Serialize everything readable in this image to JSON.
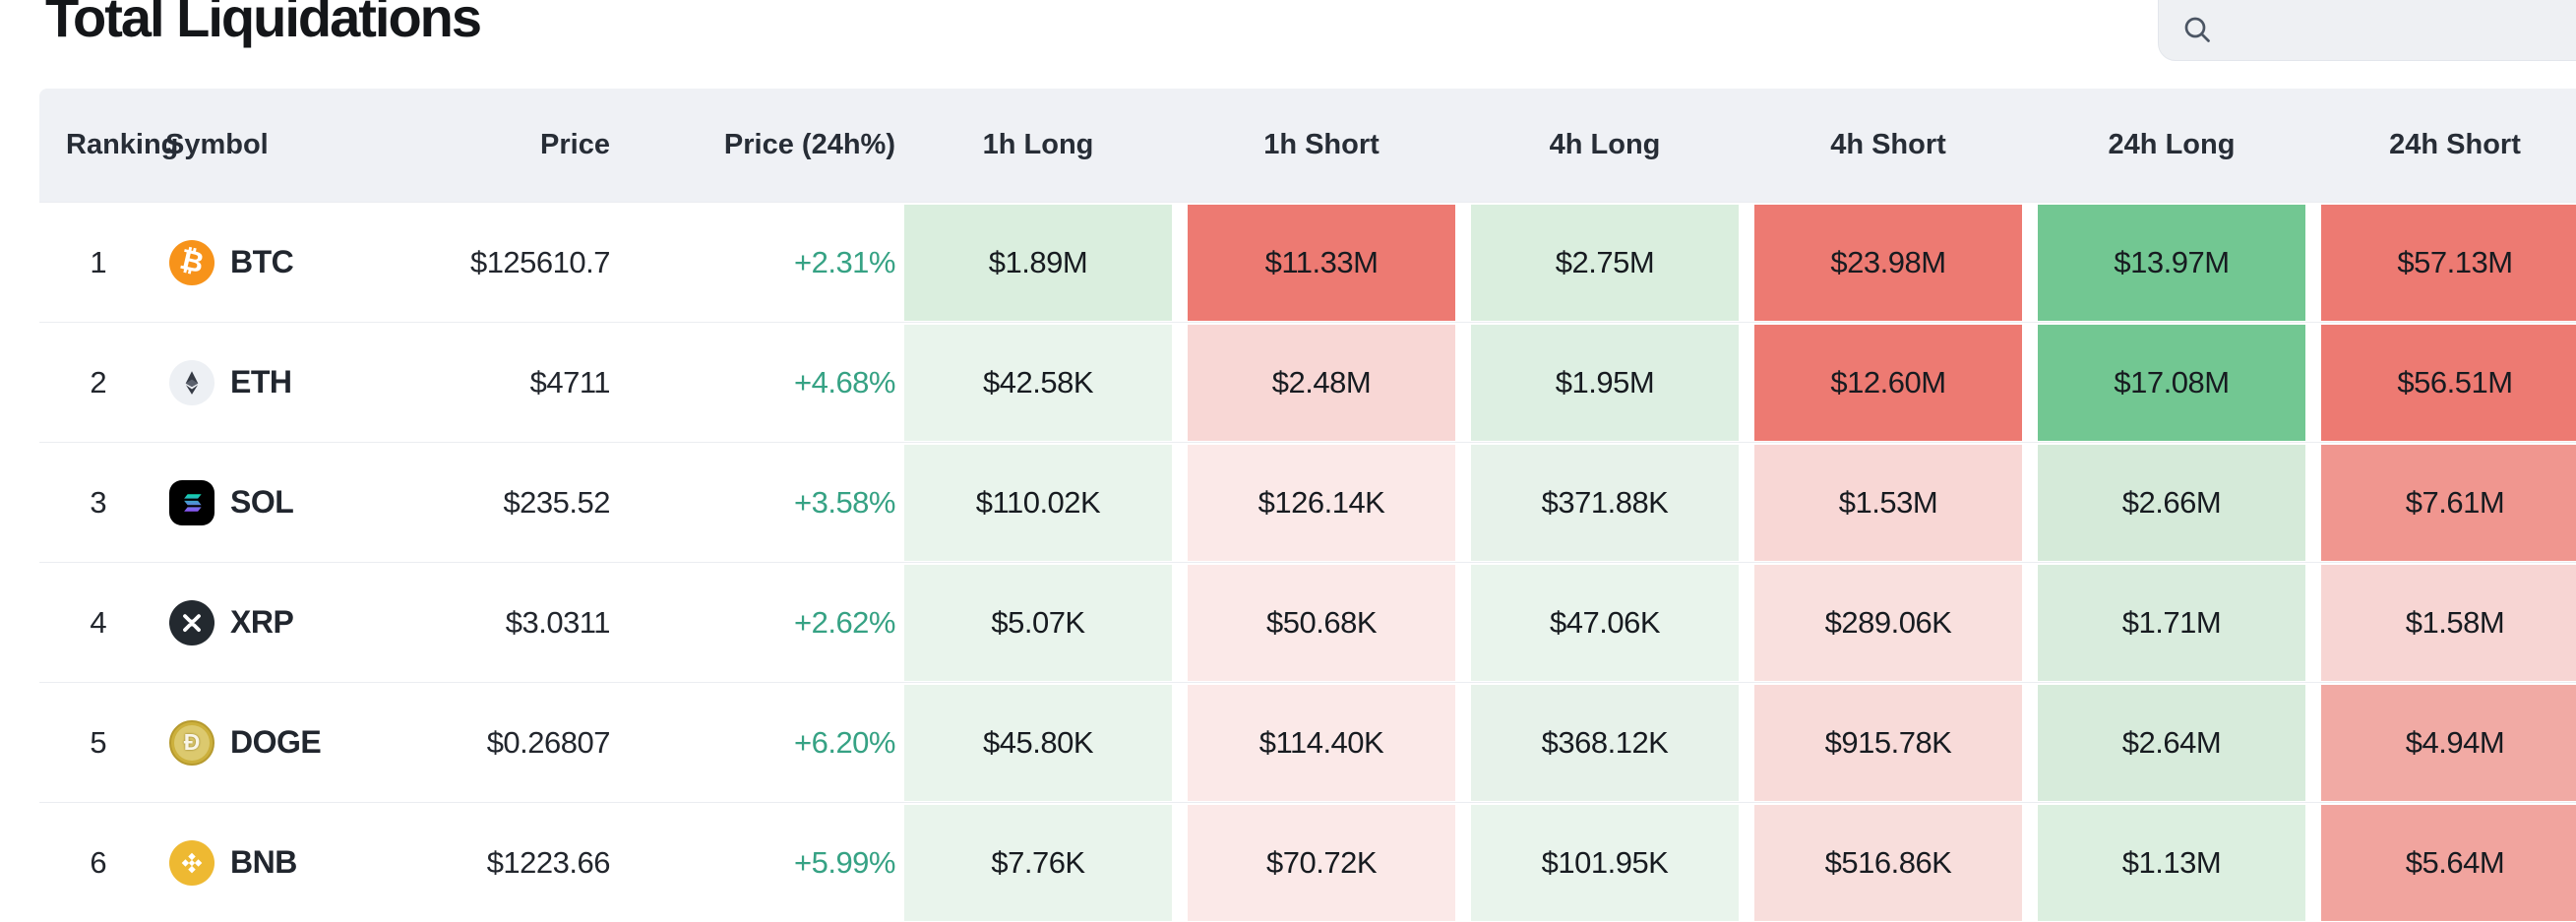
{
  "page": {
    "title": "Total Liquidations"
  },
  "search": {
    "value": "",
    "placeholder": "",
    "icon": "magnifier"
  },
  "colors": {
    "header_bg": "#eff1f5",
    "change_text": "#36a284",
    "strong_green": "#72c792",
    "strong_red": "#ed7a72",
    "row_divider": "#ebedf1"
  },
  "table": {
    "headers": [
      "Ranking",
      "Symbol",
      "Price",
      "Price (24h%)",
      "1h Long",
      "1h Short",
      "4h Long",
      "4h Short",
      "24h Long",
      "24h Short"
    ],
    "rows": [
      {
        "rank": "1",
        "symbol": "BTC",
        "icon": "btc",
        "price": "$125610.7",
        "change": "+2.31%",
        "cells": [
          {
            "v": "$1.89M",
            "bg": "#daeede"
          },
          {
            "v": "$11.33M",
            "bg": "#ed7a72"
          },
          {
            "v": "$2.75M",
            "bg": "#daeede"
          },
          {
            "v": "$23.98M",
            "bg": "#ed7a72"
          },
          {
            "v": "$13.97M",
            "bg": "#72c792"
          },
          {
            "v": "$57.13M",
            "bg": "#ed7a72"
          }
        ]
      },
      {
        "rank": "2",
        "symbol": "ETH",
        "icon": "eth",
        "price": "$4711",
        "change": "+4.68%",
        "cells": [
          {
            "v": "$42.58K",
            "bg": "#e9f4ec"
          },
          {
            "v": "$2.48M",
            "bg": "#f8d7d5"
          },
          {
            "v": "$1.95M",
            "bg": "#ddefe2"
          },
          {
            "v": "$12.60M",
            "bg": "#ed7a72"
          },
          {
            "v": "$17.08M",
            "bg": "#72c792"
          },
          {
            "v": "$56.51M",
            "bg": "#ed7a72"
          }
        ]
      },
      {
        "rank": "3",
        "symbol": "SOL",
        "icon": "sol",
        "price": "$235.52",
        "change": "+3.58%",
        "cells": [
          {
            "v": "$110.02K",
            "bg": "#e9f4ec"
          },
          {
            "v": "$126.14K",
            "bg": "#fbe9e8"
          },
          {
            "v": "$371.88K",
            "bg": "#e7f2ea"
          },
          {
            "v": "$1.53M",
            "bg": "#f8d7d5"
          },
          {
            "v": "$2.66M",
            "bg": "#d5ead9"
          },
          {
            "v": "$7.61M",
            "bg": "#f0968f"
          }
        ]
      },
      {
        "rank": "4",
        "symbol": "XRP",
        "icon": "xrp",
        "price": "$3.0311",
        "change": "+2.62%",
        "cells": [
          {
            "v": "$5.07K",
            "bg": "#e9f4ec"
          },
          {
            "v": "$50.68K",
            "bg": "#fbe9e8"
          },
          {
            "v": "$47.06K",
            "bg": "#e9f4ec"
          },
          {
            "v": "$289.06K",
            "bg": "#f9e0de"
          },
          {
            "v": "$1.71M",
            "bg": "#d9ecdd"
          },
          {
            "v": "$1.58M",
            "bg": "#f7d5d3"
          }
        ]
      },
      {
        "rank": "5",
        "symbol": "DOGE",
        "icon": "doge",
        "price": "$0.26807",
        "change": "+6.20%",
        "cells": [
          {
            "v": "$45.80K",
            "bg": "#e9f4ec"
          },
          {
            "v": "$114.40K",
            "bg": "#fbe9e8"
          },
          {
            "v": "$368.12K",
            "bg": "#e7f2ea"
          },
          {
            "v": "$915.78K",
            "bg": "#f8dbd9"
          },
          {
            "v": "$2.64M",
            "bg": "#d7ebdb"
          },
          {
            "v": "$4.94M",
            "bg": "#f1aaa4"
          }
        ]
      },
      {
        "rank": "6",
        "symbol": "BNB",
        "icon": "bnb",
        "price": "$1223.66",
        "change": "+5.99%",
        "cells": [
          {
            "v": "$7.76K",
            "bg": "#e9f4ec"
          },
          {
            "v": "$70.72K",
            "bg": "#fbe9e8"
          },
          {
            "v": "$101.95K",
            "bg": "#e9f4ec"
          },
          {
            "v": "$516.86K",
            "bg": "#f8dedc"
          },
          {
            "v": "$1.13M",
            "bg": "#dcefe0"
          },
          {
            "v": "$5.64M",
            "bg": "#f1a49e"
          }
        ]
      }
    ]
  }
}
